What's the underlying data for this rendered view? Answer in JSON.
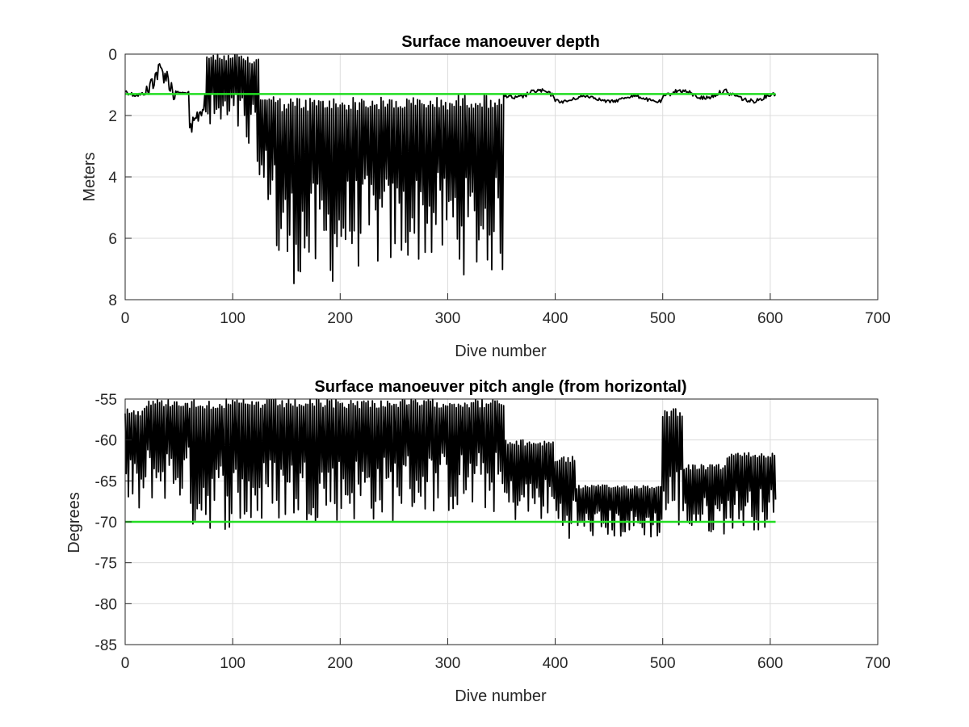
{
  "chart_data": [
    {
      "type": "line",
      "title": "Surface manoeuver depth",
      "xlabel": "Dive number",
      "ylabel": "Meters",
      "xlim": [
        0,
        700
      ],
      "ylim": [
        0,
        8
      ],
      "y_reversed": true,
      "grid": true,
      "xticks": [
        "0",
        "100",
        "200",
        "300",
        "400",
        "500",
        "600",
        "700"
      ],
      "yticks": [
        "0",
        "2",
        "4",
        "6",
        "8"
      ],
      "reference_line": {
        "y": 1.3,
        "x_range": [
          0,
          605
        ],
        "color": "#22dd22"
      },
      "line_color": "#000000",
      "segments": [
        {
          "x_range": [
            0,
            20
          ],
          "low": 1.0,
          "high": 1.4
        },
        {
          "x_range": [
            20,
            47
          ],
          "low": 0.1,
          "high": 2.1
        },
        {
          "x_range": [
            47,
            60
          ],
          "low": 1.1,
          "high": 1.3
        },
        {
          "x_range": [
            60,
            75
          ],
          "low": 1.2,
          "high": 3.0
        },
        {
          "x_range": [
            75,
            110
          ],
          "low": 0.0,
          "high": 2.7
        },
        {
          "x_range": [
            110,
            125
          ],
          "low": 0.1,
          "high": 3.5
        },
        {
          "x_range": [
            125,
            140
          ],
          "low": 1.3,
          "high": 5.0
        },
        {
          "x_range": [
            140,
            200
          ],
          "low": 1.4,
          "high": 7.5
        },
        {
          "x_range": [
            200,
            260
          ],
          "low": 1.4,
          "high": 7.0
        },
        {
          "x_range": [
            260,
            310
          ],
          "low": 1.4,
          "high": 6.8
        },
        {
          "x_range": [
            310,
            353
          ],
          "low": 1.3,
          "high": 7.2
        },
        {
          "x_range": [
            353,
            400
          ],
          "low": 1.1,
          "high": 1.5
        },
        {
          "x_range": [
            400,
            500
          ],
          "low": 1.3,
          "high": 1.6
        },
        {
          "x_range": [
            500,
            560
          ],
          "low": 1.1,
          "high": 1.5
        },
        {
          "x_range": [
            560,
            606
          ],
          "low": 1.2,
          "high": 1.6
        }
      ]
    },
    {
      "type": "line",
      "title": "Surface manoeuver pitch angle (from horizontal)",
      "xlabel": "Dive number",
      "ylabel": "Degrees",
      "xlim": [
        0,
        700
      ],
      "ylim": [
        -85,
        -55
      ],
      "grid": true,
      "xticks": [
        "0",
        "100",
        "200",
        "300",
        "400",
        "500",
        "600",
        "700"
      ],
      "yticks": [
        "-55",
        "-60",
        "-65",
        "-70",
        "-75",
        "-80",
        "-85"
      ],
      "reference_line": {
        "y": -70,
        "x_range": [
          0,
          605
        ],
        "color": "#22dd22"
      },
      "line_color": "#000000",
      "segments": [
        {
          "x_range": [
            0,
            20
          ],
          "low": -69.5,
          "high": -56.0
        },
        {
          "x_range": [
            20,
            60
          ],
          "low": -67.5,
          "high": -55.0
        },
        {
          "x_range": [
            60,
            130
          ],
          "low": -71.0,
          "high": -55.0
        },
        {
          "x_range": [
            130,
            250
          ],
          "low": -70.0,
          "high": -55.0
        },
        {
          "x_range": [
            250,
            353
          ],
          "low": -69.0,
          "high": -55.0
        },
        {
          "x_range": [
            353,
            400
          ],
          "low": -70.0,
          "high": -60.0
        },
        {
          "x_range": [
            400,
            420
          ],
          "low": -72.0,
          "high": -62.0
        },
        {
          "x_range": [
            420,
            500
          ],
          "low": -72.0,
          "high": -65.5
        },
        {
          "x_range": [
            500,
            520
          ],
          "low": -71.0,
          "high": -56.0
        },
        {
          "x_range": [
            520,
            560
          ],
          "low": -71.5,
          "high": -63.0
        },
        {
          "x_range": [
            560,
            606
          ],
          "low": -71.0,
          "high": -61.5
        }
      ]
    }
  ]
}
